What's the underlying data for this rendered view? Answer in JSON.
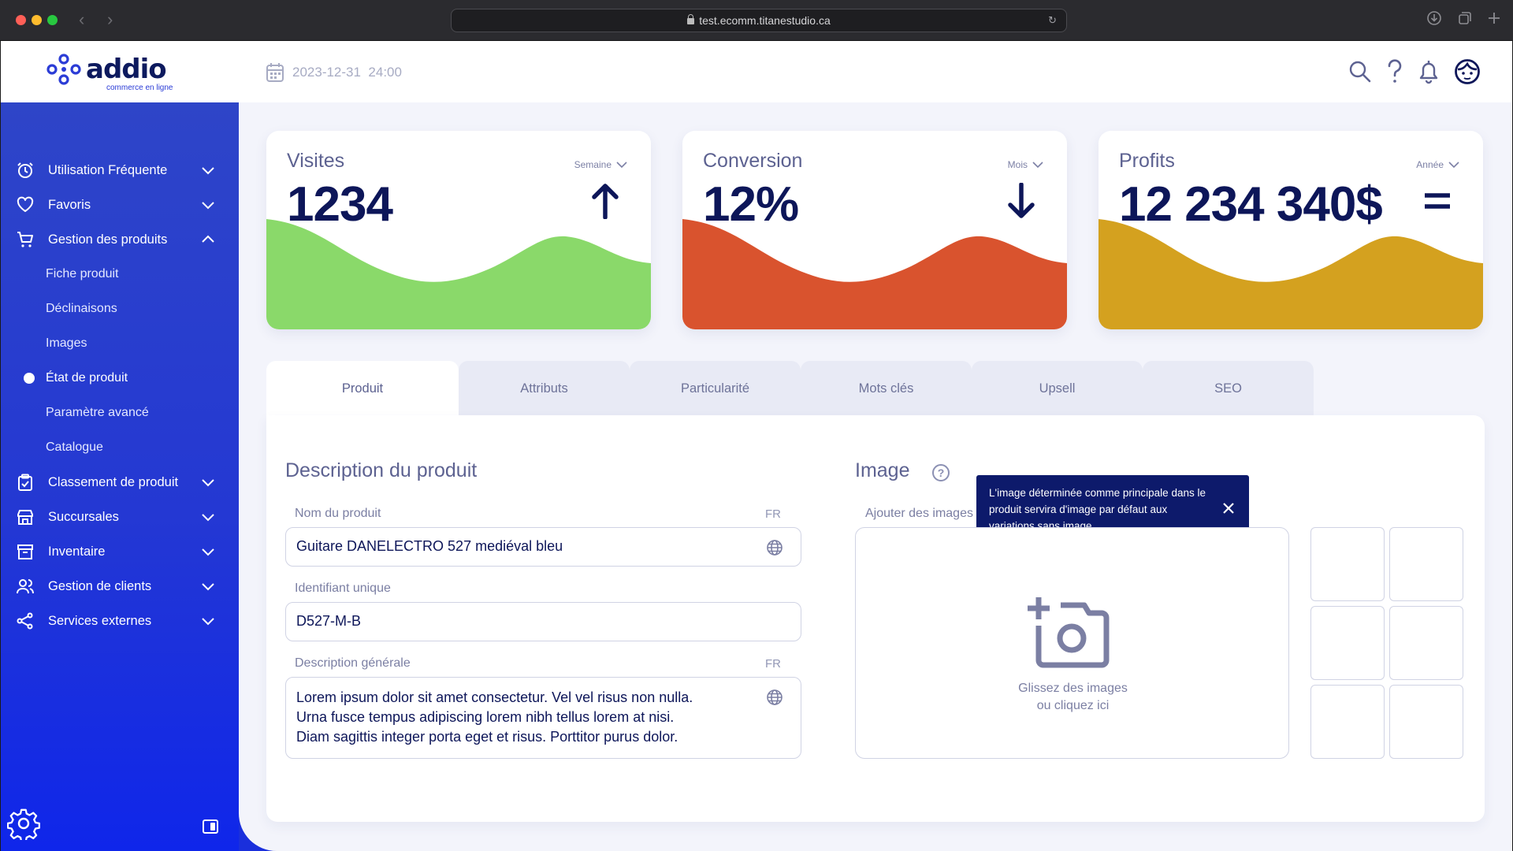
{
  "browser": {
    "url": "test.ecomm.titanestudio.ca"
  },
  "header": {
    "logo_word": "addio",
    "logo_sub": "commerce en ligne",
    "datetime": "2023-12-31  24:00"
  },
  "sidebar": {
    "items": [
      {
        "label": "Utilisation Fréquente",
        "icon": "clock-icon"
      },
      {
        "label": "Favoris",
        "icon": "heart-icon"
      },
      {
        "label": "Gestion des produits",
        "icon": "cart-icon"
      },
      {
        "label": "Classement de produit",
        "icon": "clipboard-icon"
      },
      {
        "label": "Succursales",
        "icon": "store-icon"
      },
      {
        "label": "Inventaire",
        "icon": "archive-icon"
      },
      {
        "label": "Gestion de clients",
        "icon": "users-icon"
      },
      {
        "label": "Services externes",
        "icon": "share-icon"
      }
    ],
    "subitems": [
      {
        "label": "Fiche produit"
      },
      {
        "label": "Déclinaisons"
      },
      {
        "label": "Images"
      },
      {
        "label": "État de produit"
      },
      {
        "label": "Paramètre avancé"
      },
      {
        "label": "Catalogue"
      }
    ]
  },
  "kpis": [
    {
      "title": "Visites",
      "value": "1234",
      "period": "Semaine",
      "trend": "up",
      "color": "#8ad96a"
    },
    {
      "title": "Conversion",
      "value": "12%",
      "period": "Mois",
      "trend": "down",
      "color": "#d9532e"
    },
    {
      "title": "Profits",
      "value": "12 234 340$",
      "period": "Année",
      "trend": "equal",
      "color": "#d4a11f"
    }
  ],
  "tabs": [
    {
      "label": "Produit"
    },
    {
      "label": "Attributs"
    },
    {
      "label": "Particularité"
    },
    {
      "label": "Mots clés"
    },
    {
      "label": "Upsell"
    },
    {
      "label": "SEO"
    }
  ],
  "description": {
    "title": "Description du produit",
    "name_label": "Nom du produit",
    "name_lang": "FR",
    "name_value": "Guitare DANELECTRO 527 mediéval bleu",
    "id_label": "Identifiant unique",
    "id_value": "D527-M-B",
    "desc_label": "Description générale",
    "desc_lang": "FR",
    "desc_line1": "Lorem ipsum dolor sit amet consectetur. Vel vel risus non nulla.",
    "desc_line2": "Urna fusce tempus adipiscing lorem nibh tellus lorem at nisi.",
    "desc_line3": "Diam sagittis integer porta eget et risus. Porttitor purus dolor."
  },
  "image": {
    "title": "Image",
    "help_glyph": "?",
    "tooltip": "L'image déterminée comme principale dans le produit servira d'image par défaut aux variations sans image.",
    "add_label": "Ajouter des images",
    "drop_line1": "Glissez des images",
    "drop_line2": "ou cliquez ici"
  }
}
